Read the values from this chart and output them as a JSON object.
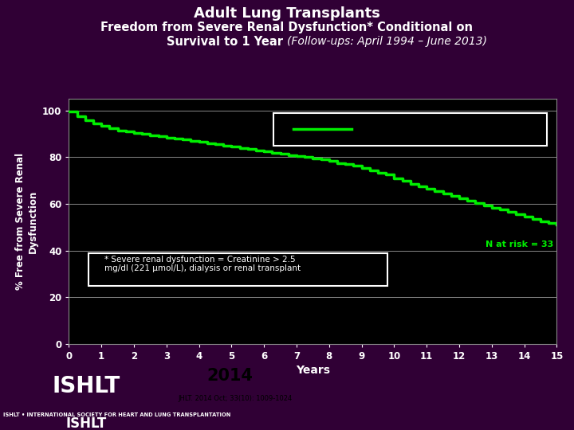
{
  "title_line1": "Adult Lung Transplants",
  "title_line2": "Freedom from Severe Renal Dysfunction* Conditional on",
  "title_line3_bold": "Survival to 1 Year ",
  "title_line3_italic": "(Follow-ups: April 1994 – June 2013)",
  "xlabel": "Years",
  "ylabel": "% Free from Severe Renal\nDysfunction",
  "bg_color": "#300035",
  "plot_bg_color": "#000000",
  "title_color": "#ffffff",
  "axis_color": "#ffffff",
  "curve_color": "#00ee00",
  "grid_color": "#888888",
  "annotation_text": "* Severe renal dysfunction = Creatinine > 2.5\nmg/dl (221 μmol/L), dialysis or renal transplant",
  "n_at_risk_text": "N at risk = 33",
  "yticks": [
    0,
    20,
    40,
    60,
    80,
    100
  ],
  "xticks": [
    0,
    1,
    2,
    3,
    4,
    5,
    6,
    7,
    8,
    9,
    10,
    11,
    12,
    13,
    14,
    15
  ],
  "curve_x": [
    0.0,
    0.25,
    0.5,
    0.75,
    1.0,
    1.25,
    1.5,
    1.75,
    2.0,
    2.25,
    2.5,
    2.75,
    3.0,
    3.25,
    3.5,
    3.75,
    4.0,
    4.25,
    4.5,
    4.75,
    5.0,
    5.25,
    5.5,
    5.75,
    6.0,
    6.25,
    6.5,
    6.75,
    7.0,
    7.25,
    7.5,
    7.75,
    8.0,
    8.25,
    8.5,
    8.75,
    9.0,
    9.25,
    9.5,
    9.75,
    10.0,
    10.25,
    10.5,
    10.75,
    11.0,
    11.25,
    11.5,
    11.75,
    12.0,
    12.25,
    12.5,
    12.75,
    13.0,
    13.25,
    13.5,
    13.75,
    14.0,
    14.25,
    14.5,
    14.75,
    15.0
  ],
  "curve_y": [
    99.5,
    97.5,
    96.0,
    94.5,
    93.5,
    92.5,
    91.5,
    91.0,
    90.5,
    90.0,
    89.5,
    89.0,
    88.5,
    88.0,
    87.5,
    87.0,
    86.5,
    86.0,
    85.5,
    85.0,
    84.5,
    84.0,
    83.5,
    83.0,
    82.5,
    82.0,
    81.5,
    81.0,
    80.5,
    80.0,
    79.5,
    79.0,
    78.5,
    77.5,
    77.0,
    76.5,
    75.5,
    74.5,
    73.5,
    72.5,
    71.0,
    70.0,
    68.5,
    67.5,
    66.5,
    65.5,
    64.5,
    63.5,
    62.5,
    61.5,
    60.5,
    59.5,
    58.5,
    57.5,
    56.5,
    55.5,
    54.5,
    53.5,
    52.5,
    52.0,
    51.0
  ],
  "logo_red_color": "#cc1111",
  "logo_blue_color": "#1a3080",
  "logo_ishlt_text": "ISHLT",
  "logo_society_text": "ISHLT • INTERNATIONAL SOCIETY FOR HEART AND LUNG TRANSPLANTATION",
  "logo_year": "2014",
  "logo_citation": "JHLT. 2014 Oct; 33(10): 1009-1024"
}
